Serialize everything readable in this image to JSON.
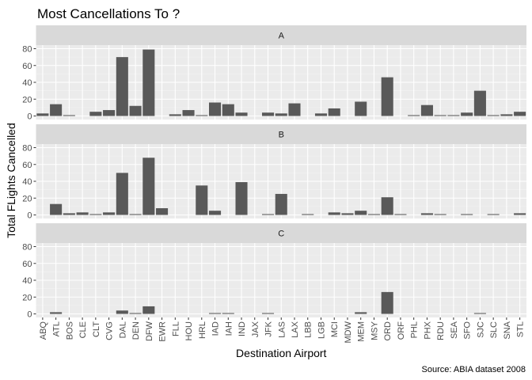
{
  "chart_data": {
    "type": "bar",
    "title": "Most Cancellations To ?",
    "xlabel": "Destination Airport",
    "ylabel": "Total FLights Cancelled",
    "caption": "Source: ABIA dataset 2008",
    "ylim": [
      0,
      80
    ],
    "yticks": [
      0,
      20,
      40,
      60,
      80
    ],
    "grid": true,
    "categories": [
      "ABQ",
      "ATL",
      "BOS",
      "CLE",
      "CLT",
      "CVG",
      "DAL",
      "DEN",
      "DFW",
      "EWR",
      "FLL",
      "HOU",
      "HRL",
      "IAD",
      "IAH",
      "IND",
      "JAX",
      "JFK",
      "LAS",
      "LAX",
      "LBB",
      "LGB",
      "MCI",
      "MDW",
      "MEM",
      "MSY",
      "ORD",
      "ORF",
      "PHL",
      "PHX",
      "RDU",
      "SEA",
      "SFO",
      "SJC",
      "SLC",
      "SNA",
      "STL"
    ],
    "series": [
      {
        "name": "A",
        "values": [
          3,
          14,
          1,
          0,
          5,
          7,
          70,
          12,
          79,
          0,
          2,
          7,
          1,
          16,
          14,
          4,
          0,
          4,
          3,
          15,
          0,
          3,
          9,
          0,
          17,
          0,
          46,
          0,
          1,
          13,
          1,
          1,
          4,
          30,
          1,
          2,
          5
        ]
      },
      {
        "name": "B",
        "values": [
          0,
          13,
          2,
          3,
          1,
          3,
          50,
          1,
          68,
          8,
          0,
          0,
          35,
          5,
          0,
          39,
          0,
          1,
          25,
          0,
          1,
          0,
          3,
          2,
          5,
          1,
          21,
          1,
          0,
          2,
          1,
          0,
          1,
          0,
          1,
          0,
          2
        ]
      },
      {
        "name": "C",
        "values": [
          0,
          2,
          0,
          0,
          0,
          0,
          4,
          1,
          9,
          0,
          0,
          0,
          0,
          1,
          1,
          0,
          0,
          1,
          0,
          0,
          0,
          0,
          0,
          0,
          2,
          0,
          26,
          0,
          0,
          0,
          0,
          0,
          0,
          1,
          0,
          0,
          0
        ]
      }
    ]
  }
}
